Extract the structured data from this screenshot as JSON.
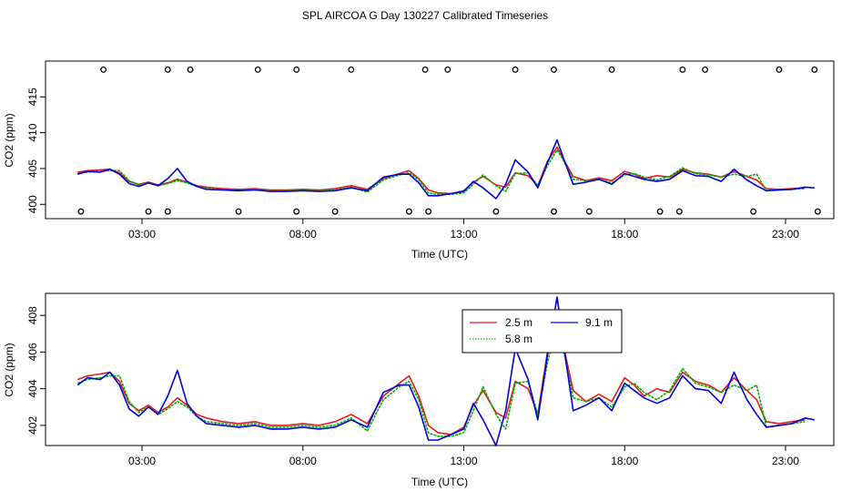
{
  "title": "SPL AIRCOA G  Day 130227  Calibrated Timeseries",
  "colors": {
    "red": "#e41a1c",
    "green": "#00b000",
    "blue": "#0000dd",
    "axis": "#000000"
  },
  "chart_data": [
    {
      "type": "line",
      "id": "top",
      "xlabel": "Time (UTC)",
      "ylabel": "CO2 (ppm)",
      "xlim": [
        0,
        24.5
      ],
      "ylim": [
        398,
        420
      ],
      "xticks": [
        3,
        8,
        13,
        18,
        23
      ],
      "xtick_labels": [
        "03:00",
        "08:00",
        "13:00",
        "18:00",
        "23:00"
      ],
      "yticks": [
        400,
        405,
        410,
        415
      ],
      "ytick_labels": [
        "400",
        "405",
        "410",
        "415"
      ],
      "calibration_markers": {
        "upper": {
          "y": 418.8,
          "x": [
            1.8,
            3.8,
            4.5,
            6.6,
            7.8,
            9.5,
            11.8,
            12.5,
            14.6,
            15.8,
            17.6,
            19.8,
            20.5,
            22.8,
            23.9
          ]
        },
        "lower": {
          "y": 399.0,
          "x": [
            1.1,
            3.2,
            3.8,
            6.0,
            7.8,
            9.0,
            11.3,
            11.9,
            14.0,
            15.8,
            16.9,
            19.1,
            19.7,
            22.0,
            24.0
          ]
        }
      },
      "series": [
        {
          "name": "2.5 m",
          "color": "red",
          "x": [
            1.0,
            1.3,
            1.7,
            2.0,
            2.3,
            2.6,
            2.9,
            3.2,
            3.5,
            3.8,
            4.1,
            4.4,
            4.7,
            5.0,
            5.5,
            6.0,
            6.5,
            7.0,
            7.5,
            8.0,
            8.5,
            9.0,
            9.5,
            10.0,
            10.5,
            11.0,
            11.3,
            11.6,
            11.9,
            12.2,
            12.6,
            13.0,
            13.3,
            13.6,
            14.0,
            14.3,
            14.6,
            15.0,
            15.3,
            15.6,
            15.9,
            16.1,
            16.4,
            16.8,
            17.2,
            17.6,
            18.0,
            18.3,
            18.6,
            19.0,
            19.4,
            19.8,
            20.2,
            20.6,
            21.0,
            21.4,
            21.8,
            22.1,
            22.4,
            22.8,
            23.2,
            23.6
          ],
          "y": [
            404.5,
            404.7,
            404.8,
            404.9,
            404.4,
            403.2,
            402.8,
            403.1,
            402.7,
            403.0,
            403.5,
            403.1,
            402.6,
            402.4,
            402.2,
            402.1,
            402.2,
            402.0,
            402.0,
            402.1,
            402.0,
            402.2,
            402.6,
            402.1,
            403.6,
            404.3,
            404.7,
            403.6,
            402.0,
            401.6,
            401.5,
            401.9,
            403.1,
            403.9,
            402.7,
            402.4,
            404.4,
            404.0,
            402.6,
            406.0,
            408.0,
            406.3,
            403.9,
            403.3,
            403.7,
            403.3,
            404.6,
            404.2,
            403.6,
            404.0,
            403.8,
            404.9,
            404.4,
            404.2,
            403.8,
            404.6,
            403.9,
            403.4,
            402.2,
            402.1,
            402.2,
            402.3
          ]
        },
        {
          "name": "5.8 m",
          "color": "green",
          "x": [
            1.0,
            1.3,
            1.7,
            2.0,
            2.3,
            2.6,
            2.9,
            3.2,
            3.5,
            3.8,
            4.1,
            4.4,
            4.7,
            5.0,
            5.5,
            6.0,
            6.5,
            7.0,
            7.5,
            8.0,
            8.5,
            9.0,
            9.5,
            10.0,
            10.5,
            11.0,
            11.3,
            11.6,
            11.9,
            12.2,
            12.6,
            13.0,
            13.3,
            13.6,
            14.0,
            14.3,
            14.6,
            15.0,
            15.3,
            15.6,
            15.9,
            16.1,
            16.4,
            16.8,
            17.2,
            17.6,
            18.0,
            18.3,
            18.6,
            19.0,
            19.4,
            19.8,
            20.2,
            20.6,
            21.0,
            21.4,
            21.8,
            22.1,
            22.4,
            22.8,
            23.2,
            23.6
          ],
          "y": [
            404.3,
            404.5,
            404.6,
            404.7,
            404.7,
            403.3,
            402.7,
            403.0,
            402.6,
            402.9,
            403.3,
            403.0,
            402.5,
            402.2,
            402.1,
            402.0,
            402.1,
            401.9,
            401.9,
            402.0,
            401.9,
            402.0,
            402.4,
            401.7,
            403.4,
            404.1,
            404.4,
            403.4,
            401.6,
            401.4,
            401.4,
            401.6,
            402.8,
            404.1,
            402.6,
            401.8,
            404.3,
            404.4,
            402.6,
            405.4,
            407.6,
            406.1,
            403.5,
            403.3,
            403.5,
            403.0,
            404.1,
            404.3,
            403.8,
            403.4,
            403.9,
            405.1,
            404.3,
            404.1,
            403.8,
            404.2,
            403.9,
            404.2,
            401.9,
            402.0,
            402.1,
            402.2
          ]
        },
        {
          "name": "9.1 m",
          "color": "blue",
          "x": [
            1.0,
            1.3,
            1.7,
            2.0,
            2.3,
            2.6,
            2.9,
            3.2,
            3.5,
            3.8,
            4.1,
            4.4,
            4.7,
            5.0,
            5.5,
            6.0,
            6.5,
            7.0,
            7.5,
            8.0,
            8.5,
            9.0,
            9.5,
            10.0,
            10.5,
            11.0,
            11.3,
            11.6,
            11.9,
            12.2,
            12.6,
            13.0,
            13.3,
            13.6,
            14.0,
            14.3,
            14.6,
            15.0,
            15.3,
            15.6,
            15.9,
            16.1,
            16.4,
            16.8,
            17.2,
            17.6,
            18.0,
            18.3,
            18.6,
            19.0,
            19.4,
            19.8,
            20.2,
            20.6,
            21.0,
            21.4,
            21.8,
            22.1,
            22.4,
            22.8,
            23.2,
            23.6,
            23.9
          ],
          "y": [
            404.2,
            404.6,
            404.5,
            404.9,
            404.2,
            402.9,
            402.5,
            403.0,
            402.6,
            403.6,
            405.0,
            403.2,
            402.5,
            402.1,
            402.0,
            401.9,
            402.0,
            401.8,
            401.8,
            401.9,
            401.8,
            401.9,
            402.3,
            401.9,
            403.8,
            404.2,
            404.2,
            403.0,
            401.2,
            401.2,
            401.5,
            401.8,
            403.2,
            402.3,
            400.8,
            402.8,
            406.2,
            404.5,
            402.3,
            405.8,
            409.0,
            406.4,
            402.8,
            403.1,
            403.5,
            402.8,
            404.3,
            403.9,
            403.5,
            403.2,
            403.5,
            404.7,
            404.0,
            403.9,
            403.2,
            404.9,
            403.4,
            402.6,
            401.9,
            402.0,
            402.1,
            402.4,
            402.3
          ]
        }
      ]
    },
    {
      "type": "line",
      "id": "bottom",
      "xlabel": "Time (UTC)",
      "ylabel": "CO2 (ppm)",
      "xlim": [
        0,
        24.5
      ],
      "ylim": [
        400.9,
        409.2
      ],
      "xticks": [
        3,
        8,
        13,
        18,
        23
      ],
      "xtick_labels": [
        "03:00",
        "08:00",
        "13:00",
        "18:00",
        "23:00"
      ],
      "yticks": [
        402,
        404,
        406,
        408
      ],
      "ytick_labels": [
        "402",
        "404",
        "406",
        "408"
      ],
      "legend": {
        "position": "top-right-center",
        "entries": [
          "2.5 m",
          "5.8 m",
          "9.1 m"
        ]
      }
    }
  ]
}
